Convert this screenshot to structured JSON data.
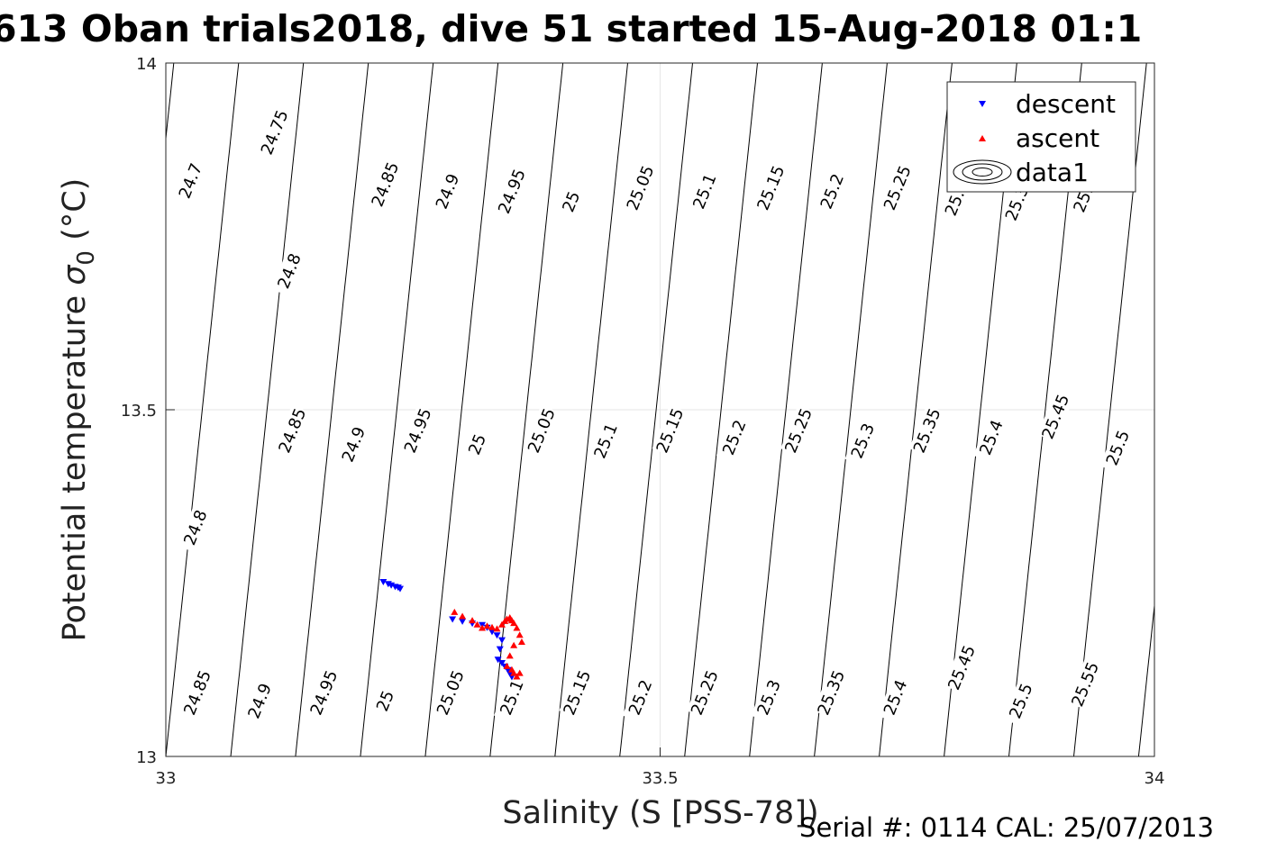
{
  "chart_data": {
    "type": "scatter",
    "title": "613 Oban trials2018, dive 51 started 15-Aug-2018 01:1",
    "xlabel": "Salinity (S [PSS-78])",
    "ylabel_main": "Potential temperature ",
    "ylabel_sigma": "σ",
    "ylabel_sub": "0",
    "ylabel_unit": " (°C)",
    "xlim": [
      33,
      34
    ],
    "ylim": [
      13,
      14
    ],
    "x_ticks": [
      {
        "value": 33,
        "label": "33"
      },
      {
        "value": 33.5,
        "label": "33.5"
      },
      {
        "value": 34,
        "label": "34"
      }
    ],
    "y_ticks": [
      {
        "value": 13,
        "label": "13"
      },
      {
        "value": 13.5,
        "label": "13.5"
      },
      {
        "value": 14,
        "label": "14"
      }
    ],
    "grid": true,
    "contour_labels": [
      {
        "text": "24.7",
        "x": 33.025,
        "y": 13.83
      },
      {
        "text": "24.75",
        "x": 33.11,
        "y": 13.9
      },
      {
        "text": "24.85",
        "x": 33.222,
        "y": 13.825
      },
      {
        "text": "24.9",
        "x": 33.285,
        "y": 13.815
      },
      {
        "text": "24.95",
        "x": 33.35,
        "y": 13.815
      },
      {
        "text": "25",
        "x": 33.41,
        "y": 13.8
      },
      {
        "text": "25.05",
        "x": 33.48,
        "y": 13.82
      },
      {
        "text": "25.1",
        "x": 33.545,
        "y": 13.815
      },
      {
        "text": "25.15",
        "x": 33.612,
        "y": 13.82
      },
      {
        "text": "25.2",
        "x": 33.674,
        "y": 13.815
      },
      {
        "text": "25.25",
        "x": 33.74,
        "y": 13.82
      },
      {
        "text": "25.3",
        "x": 33.8,
        "y": 13.805
      },
      {
        "text": "25.35",
        "x": 33.863,
        "y": 13.805
      },
      {
        "text": "25.4",
        "x": 33.93,
        "y": 13.81
      },
      {
        "text": "24.8",
        "x": 33.125,
        "y": 13.7
      },
      {
        "text": "24.85",
        "x": 33.128,
        "y": 13.47
      },
      {
        "text": "24.9",
        "x": 33.19,
        "y": 13.45
      },
      {
        "text": "24.95",
        "x": 33.255,
        "y": 13.47
      },
      {
        "text": "25",
        "x": 33.315,
        "y": 13.45
      },
      {
        "text": "25.05",
        "x": 33.38,
        "y": 13.47
      },
      {
        "text": "25.1",
        "x": 33.445,
        "y": 13.455
      },
      {
        "text": "25.15",
        "x": 33.51,
        "y": 13.47
      },
      {
        "text": "25.2",
        "x": 33.575,
        "y": 13.46
      },
      {
        "text": "25.25",
        "x": 33.64,
        "y": 13.47
      },
      {
        "text": "25.3",
        "x": 33.705,
        "y": 13.455
      },
      {
        "text": "25.35",
        "x": 33.77,
        "y": 13.47
      },
      {
        "text": "25.4",
        "x": 33.835,
        "y": 13.46
      },
      {
        "text": "25.45",
        "x": 33.9,
        "y": 13.49
      },
      {
        "text": "25.5",
        "x": 33.963,
        "y": 13.445
      },
      {
        "text": "24.8",
        "x": 33.03,
        "y": 13.33
      },
      {
        "text": "24.85",
        "x": 33.032,
        "y": 13.092
      },
      {
        "text": "24.9",
        "x": 33.095,
        "y": 13.08
      },
      {
        "text": "24.95",
        "x": 33.16,
        "y": 13.092
      },
      {
        "text": "25",
        "x": 33.222,
        "y": 13.08
      },
      {
        "text": "25.05",
        "x": 33.288,
        "y": 13.092
      },
      {
        "text": "25.1",
        "x": 33.35,
        "y": 13.085
      },
      {
        "text": "25.15",
        "x": 33.416,
        "y": 13.092
      },
      {
        "text": "25.2",
        "x": 33.48,
        "y": 13.085
      },
      {
        "text": "25.25",
        "x": 33.545,
        "y": 13.092
      },
      {
        "text": "25.3",
        "x": 33.61,
        "y": 13.085
      },
      {
        "text": "25.35",
        "x": 33.673,
        "y": 13.092
      },
      {
        "text": "25.4",
        "x": 33.738,
        "y": 13.085
      },
      {
        "text": "25.45",
        "x": 33.805,
        "y": 13.128
      },
      {
        "text": "25.5",
        "x": 33.865,
        "y": 13.08
      },
      {
        "text": "25.55",
        "x": 33.93,
        "y": 13.104
      }
    ],
    "series": [
      {
        "name": "descent",
        "marker": "down-triangle",
        "color": "#0000ff",
        "x": [
          33.22,
          33.225,
          33.228,
          33.232,
          33.235,
          33.237,
          33.29,
          33.3,
          33.31,
          33.32,
          33.325,
          33.33,
          33.335,
          33.34,
          33.338,
          33.336,
          33.34,
          33.343,
          33.346,
          33.348,
          33.35
        ],
        "y": [
          13.252,
          13.249,
          13.247,
          13.245,
          13.244,
          13.242,
          13.198,
          13.195,
          13.192,
          13.19,
          13.186,
          13.18,
          13.175,
          13.168,
          13.155,
          13.14,
          13.135,
          13.13,
          13.125,
          13.12,
          13.115
        ]
      },
      {
        "name": "ascent",
        "marker": "up-triangle",
        "color": "#ff0000",
        "x": [
          33.292,
          33.3,
          33.31,
          33.315,
          33.32,
          33.325,
          33.33,
          33.335,
          33.34,
          33.343,
          33.345,
          33.348,
          33.35,
          33.352,
          33.355,
          33.358,
          33.36,
          33.352,
          33.348,
          33.345,
          33.35,
          33.352,
          33.355,
          33.358
        ],
        "y": [
          13.208,
          13.202,
          13.196,
          13.19,
          13.185,
          13.188,
          13.186,
          13.184,
          13.19,
          13.195,
          13.198,
          13.2,
          13.196,
          13.192,
          13.185,
          13.175,
          13.165,
          13.16,
          13.145,
          13.13,
          13.125,
          13.12,
          13.115,
          13.12
        ]
      }
    ],
    "legend": {
      "position": "top-right",
      "entries": [
        "descent",
        "ascent",
        "data1"
      ]
    }
  },
  "footer": "Serial #: 0114  CAL: 25/07/2013"
}
